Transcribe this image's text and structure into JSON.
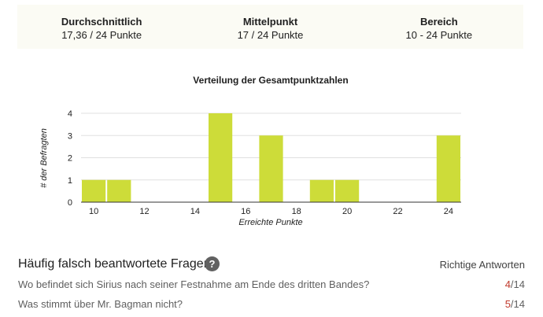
{
  "summary": [
    {
      "label": "Durchschnittlich",
      "value": "17,36 / 24 Punkte"
    },
    {
      "label": "Mittelpunkt",
      "value": "17 / 24 Punkte"
    },
    {
      "label": "Bereich",
      "value": "10 - 24 Punkte"
    }
  ],
  "chart_data": {
    "type": "bar",
    "title": "Verteilung der Gesamtpunktzahlen",
    "xlabel": "Erreichte Punkte",
    "ylabel": "# der Befragten",
    "x": [
      10,
      11,
      15,
      17,
      19,
      20,
      24
    ],
    "values": [
      1,
      1,
      4,
      3,
      1,
      1,
      3
    ],
    "xlim": [
      9.5,
      24.5
    ],
    "ylim": [
      0,
      4
    ],
    "xticks": [
      10,
      12,
      14,
      16,
      18,
      20,
      22,
      24
    ],
    "yticks": [
      0,
      1,
      2,
      3,
      4
    ],
    "grid": true,
    "legend": "none",
    "bar_color": "#cddc39"
  },
  "questions": {
    "title": "Häufig falsch beantwortete Fragen",
    "help_icon": "question-circle-icon",
    "column_header": "Richtige Antworten",
    "items": [
      {
        "text": "Wo befindet sich Sirius nach seiner Festnahme am Ende des dritten Bandes?",
        "correct": "4",
        "total": "/14"
      },
      {
        "text": "Was stimmt über Mr. Bagman nicht?",
        "correct": "5",
        "total": "/14"
      }
    ]
  }
}
